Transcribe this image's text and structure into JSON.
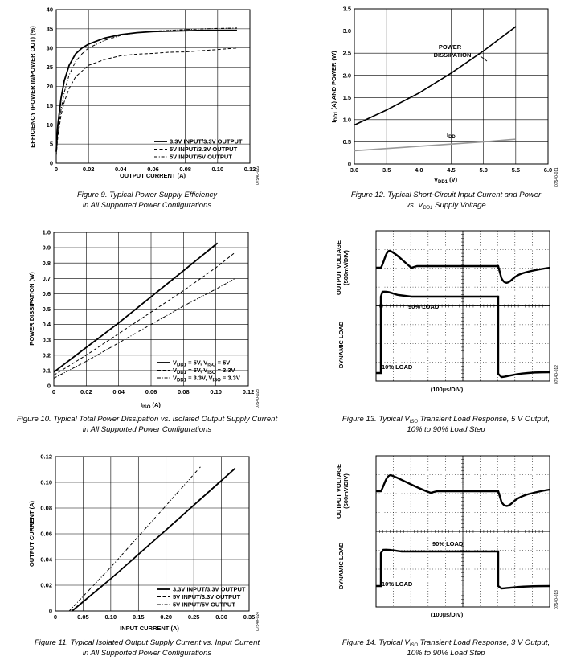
{
  "chart_data": [
    {
      "id": "fig9",
      "type": "line",
      "caption": [
        "Figure 9. Typical Power Supply Efficiency",
        "in All Supported Power Configurations"
      ],
      "xlabel": "OUTPUT CURRENT (A)",
      "ylabel": "EFFICIENCY (POWER IN/POWER OUT) (%)",
      "xlim": [
        0,
        0.12
      ],
      "ylim": [
        0,
        40
      ],
      "xticks": [
        "0",
        "0.02",
        "0.04",
        "0.06",
        "0.08",
        "0.10",
        "0.12"
      ],
      "yticks": [
        "0",
        "5",
        "10",
        "15",
        "20",
        "25",
        "30",
        "35",
        "40"
      ],
      "grid": true,
      "side_label": "07540-022",
      "series": [
        {
          "name": "3.3V INPUT/3.3V OUTPUT",
          "style": "solid",
          "x": [
            0,
            0.001,
            0.003,
            0.005,
            0.008,
            0.012,
            0.016,
            0.02,
            0.03,
            0.04,
            0.05,
            0.06,
            0.07,
            0.08,
            0.09,
            0.1,
            0.112
          ],
          "y": [
            3,
            10,
            17,
            21.5,
            25.5,
            28.5,
            30,
            31,
            32.6,
            33.5,
            34,
            34.3,
            34.4,
            34.5,
            34.6,
            34.6,
            34.6
          ]
        },
        {
          "name": "5V INPUT/3.3V OUTPUT",
          "style": "dashed",
          "x": [
            0,
            0.001,
            0.003,
            0.005,
            0.008,
            0.012,
            0.016,
            0.02,
            0.03,
            0.04,
            0.05,
            0.06,
            0.07,
            0.08,
            0.09,
            0.1,
            0.112
          ],
          "y": [
            2,
            7,
            12.5,
            16,
            19.5,
            22.5,
            24,
            25.5,
            27,
            28,
            28.4,
            28.6,
            28.9,
            29,
            29.3,
            29.6,
            30
          ]
        },
        {
          "name": "5V INPUT/5V OUTPUT",
          "style": "dotdash",
          "x": [
            0,
            0.001,
            0.003,
            0.005,
            0.008,
            0.012,
            0.016,
            0.02,
            0.03,
            0.04,
            0.05,
            0.06,
            0.07,
            0.08,
            0.09,
            0.1,
            0.112
          ],
          "y": [
            2.5,
            8,
            14,
            18.5,
            23,
            26.5,
            28.5,
            30,
            32,
            33.3,
            34,
            34.4,
            34.6,
            34.8,
            35,
            35.1,
            35.2
          ]
        }
      ]
    },
    {
      "id": "fig12",
      "type": "line",
      "caption": [
        "Figure 12. Typical Short-Circuit Input Current and Power",
        "vs. V",
        "DD1",
        " Supply Voltage"
      ],
      "xlabel": "V",
      "xlabel_sub": "DD1",
      "xlabel_unit": " (V)",
      "ylabel": "I",
      "ylabel_sub": "DD1",
      "ylabel_rest": " (A) AND POWER (W)",
      "xlim": [
        3.0,
        6.0
      ],
      "ylim": [
        0,
        3.5
      ],
      "xticks": [
        "3.0",
        "3.5",
        "4.0",
        "4.5",
        "5.0",
        "5.5",
        "6.0"
      ],
      "yticks": [
        "0",
        "0.5",
        "1.0",
        "1.5",
        "2.0",
        "2.5",
        "3.0",
        "3.5"
      ],
      "grid": true,
      "side_label": "07540-011",
      "series": [
        {
          "name": "POWER DISSIPATION",
          "label_lines": [
            "POWER",
            "DISSIPATION"
          ],
          "color": "#000000",
          "x": [
            3.0,
            3.5,
            4.0,
            4.5,
            5.0,
            5.5
          ],
          "y": [
            0.88,
            1.22,
            1.6,
            2.05,
            2.55,
            3.1
          ]
        },
        {
          "name": "I",
          "name_sub": "DD",
          "color": "#999999",
          "x": [
            3.0,
            3.5,
            4.0,
            4.5,
            5.0,
            5.5
          ],
          "y": [
            0.3,
            0.35,
            0.4,
            0.45,
            0.5,
            0.56
          ]
        }
      ]
    },
    {
      "id": "fig10",
      "type": "line",
      "caption": [
        "Figure 10. Typical Total Power Dissipation vs. Isolated Output Supply Current",
        "in All Supported Power Configurations"
      ],
      "xlabel": "I",
      "xlabel_sub": "ISO",
      "xlabel_unit": " (A)",
      "ylabel": "POWER DISSIPATION (W)",
      "xlim": [
        0,
        0.12
      ],
      "ylim": [
        0,
        1.0
      ],
      "xticks": [
        "0",
        "0.02",
        "0.04",
        "0.06",
        "0.08",
        "0.10",
        "0.12"
      ],
      "yticks": [
        "0",
        "0.1",
        "0.2",
        "0.3",
        "0.4",
        "0.5",
        "0.6",
        "0.7",
        "0.8",
        "0.9",
        "1.0"
      ],
      "grid": true,
      "side_label": "07540-023",
      "series": [
        {
          "name_parts": [
            "V",
            "DD1",
            " = 5V, V",
            "ISO",
            " = 5V"
          ],
          "style": "solid",
          "x": [
            0,
            0.02,
            0.04,
            0.06,
            0.08,
            0.101
          ],
          "y": [
            0.09,
            0.25,
            0.41,
            0.58,
            0.75,
            0.93
          ]
        },
        {
          "name_parts": [
            "V",
            "DD1",
            " = 5V, V",
            "ISO",
            " = 3.3V"
          ],
          "style": "dashed",
          "x": [
            0,
            0.02,
            0.04,
            0.06,
            0.08,
            0.1,
            0.112
          ],
          "y": [
            0.07,
            0.2,
            0.34,
            0.48,
            0.62,
            0.77,
            0.87
          ]
        },
        {
          "name_parts": [
            "V",
            "DD1",
            " = 3.3V, V",
            "ISO",
            " = 3.3V"
          ],
          "style": "dotdash",
          "x": [
            0,
            0.02,
            0.04,
            0.06,
            0.08,
            0.1,
            0.112
          ],
          "y": [
            0.05,
            0.16,
            0.28,
            0.4,
            0.52,
            0.63,
            0.7
          ]
        }
      ]
    },
    {
      "id": "fig13",
      "type": "line",
      "caption": [
        "Figure 13. Typical V",
        "ISO",
        " Transient Load Response, 5 V Output,",
        "10% to 90% Load Step"
      ],
      "xlabel": "(100µs/DIV)",
      "ylabel_top": [
        "OUTPUT VOLTAGE",
        "(500mV/DIV)"
      ],
      "ylabel_bottom": "DYNAMIC LOAD",
      "labels": [
        "90% LOAD",
        "10% LOAD"
      ],
      "side_label": "07540-012",
      "divisions": [
        10,
        8
      ]
    },
    {
      "id": "fig11",
      "type": "line",
      "caption": [
        "Figure 11. Typical Isolated Output Supply Current vs. Input Current",
        "in All Supported Power Configurations"
      ],
      "xlabel": "INPUT CURRENT (A)",
      "ylabel": "OUTPUT CURRENT (A)",
      "xlim": [
        0,
        0.35
      ],
      "ylim": [
        0,
        0.12
      ],
      "xticks": [
        "0",
        "0.05",
        "0.10",
        "0.15",
        "0.20",
        "0.25",
        "0.30",
        "0.35"
      ],
      "yticks": [
        "0",
        "0.02",
        "0.04",
        "0.06",
        "0.08",
        "0.10",
        "0.12"
      ],
      "grid": true,
      "side_label": "07540-024",
      "series": [
        {
          "name": "3.3V INPUT/3.3V OUTPUT",
          "style": "solid",
          "x": [
            0.03,
            0.1,
            0.2,
            0.325
          ],
          "y": [
            0,
            0.025,
            0.063,
            0.111
          ]
        },
        {
          "name": "5V INPUT/3.3V OUTPUT",
          "style": "dashed",
          "x": [
            0.03,
            0.1,
            0.2,
            0.295
          ],
          "y": [
            0,
            0.025,
            0.063,
            0.1
          ]
        },
        {
          "name": "5V INPUT/5V OUTPUT",
          "style": "dotdash",
          "x": [
            0.025,
            0.1,
            0.2,
            0.262
          ],
          "y": [
            0,
            0.034,
            0.082,
            0.112
          ]
        }
      ]
    },
    {
      "id": "fig14",
      "type": "line",
      "caption": [
        "Figure 14. Typical V",
        "ISO",
        " Transient Load Response, 3 V Output,",
        "10% to 90% Load Step"
      ],
      "xlabel": "(100µs/DIV)",
      "ylabel_top": [
        "OUTPUT VOLTAGE",
        "(500mV/DIV)"
      ],
      "ylabel_bottom": "DYNAMIC LOAD",
      "labels": [
        "90% LOAD",
        "10% LOAD"
      ],
      "side_label": "07540-013",
      "divisions": [
        10,
        8
      ]
    }
  ]
}
